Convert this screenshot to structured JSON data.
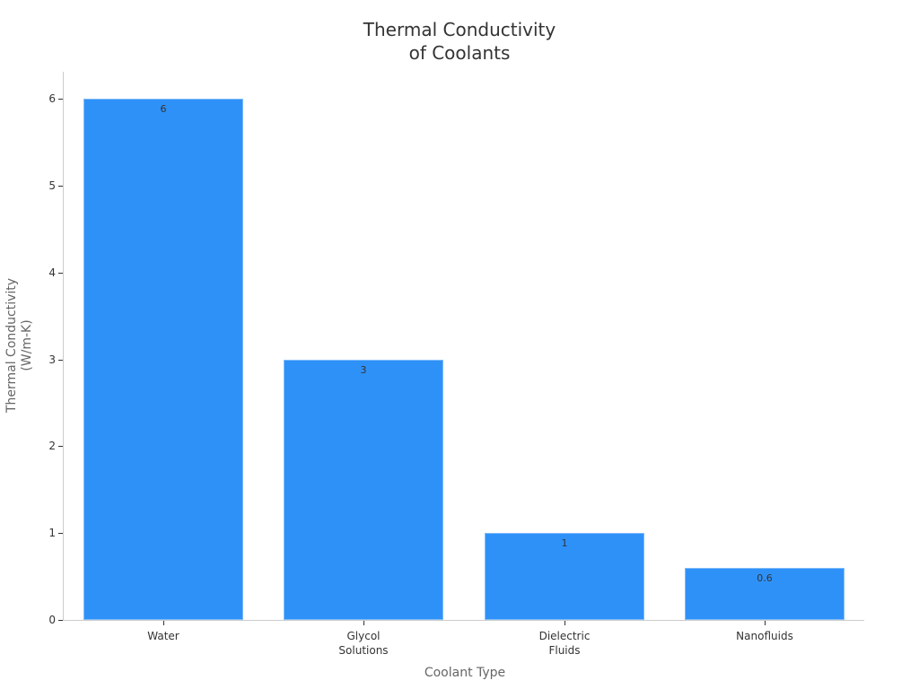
{
  "chart_data": {
    "type": "bar",
    "title": "Thermal Conductivity of Coolants",
    "title_lines": [
      "Thermal Conductivity",
      "of Coolants"
    ],
    "xlabel": "Coolant Type",
    "ylabel": "Thermal Conductivity (W/m-K)",
    "ylabel_lines": [
      "Thermal Conductivity",
      "(W/m-K)"
    ],
    "categories": [
      "Water",
      "Glycol Solutions",
      "Dielectric Fluids",
      "Nanofluids"
    ],
    "category_lines": [
      [
        "Water"
      ],
      [
        "Glycol",
        "Solutions"
      ],
      [
        "Dielectric",
        "Fluids"
      ],
      [
        "Nanofluids"
      ]
    ],
    "values": [
      6,
      3,
      1,
      0.6
    ],
    "data_labels": [
      "6",
      "3",
      "1",
      "0.6"
    ],
    "ylim": [
      0,
      6.3
    ],
    "yticks": [
      0,
      1,
      2,
      3,
      4,
      5,
      6
    ],
    "grid": false,
    "legend": null,
    "bar_color": "#2e91f8"
  }
}
